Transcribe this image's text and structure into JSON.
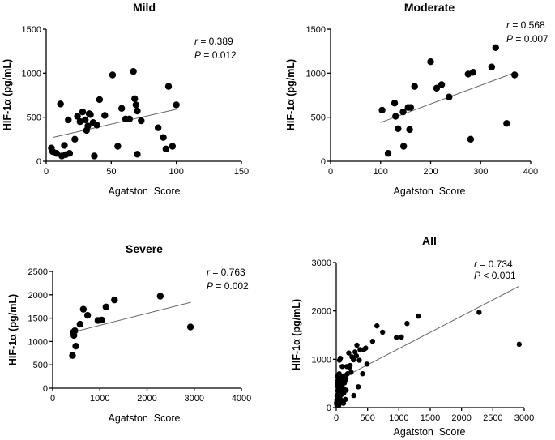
{
  "chart_data": [
    {
      "type": "scatter",
      "title": "Mild",
      "xlabel": "Agatston  Score",
      "ylabel": "HIF-1α (pg/mL)",
      "xlim": [
        0,
        150
      ],
      "ylim": [
        0,
        1500
      ],
      "xticks": [
        0,
        50,
        100,
        150
      ],
      "yticks": [
        0,
        500,
        1000,
        1500
      ],
      "r_label": "r",
      "r_value": " = 0.389",
      "p_label": "P",
      "p_value": " = 0.012",
      "trendline": [
        [
          5,
          270
        ],
        [
          100,
          590
        ]
      ],
      "points": [
        [
          4,
          150
        ],
        [
          5,
          110
        ],
        [
          8,
          90
        ],
        [
          11,
          650
        ],
        [
          12,
          60
        ],
        [
          14,
          180
        ],
        [
          15,
          75
        ],
        [
          17,
          470
        ],
        [
          18,
          90
        ],
        [
          22,
          250
        ],
        [
          24,
          510
        ],
        [
          26,
          450
        ],
        [
          28,
          560
        ],
        [
          30,
          470
        ],
        [
          31,
          350
        ],
        [
          32,
          400
        ],
        [
          33,
          540
        ],
        [
          34,
          530
        ],
        [
          36,
          440
        ],
        [
          37,
          60
        ],
        [
          39,
          410
        ],
        [
          41,
          700
        ],
        [
          45,
          520
        ],
        [
          51,
          980
        ],
        [
          55,
          170
        ],
        [
          58,
          600
        ],
        [
          61,
          480
        ],
        [
          64,
          480
        ],
        [
          67,
          1020
        ],
        [
          68,
          710
        ],
        [
          69,
          640
        ],
        [
          70,
          570
        ],
        [
          70,
          80
        ],
        [
          73,
          460
        ],
        [
          86,
          380
        ],
        [
          90,
          270
        ],
        [
          92,
          140
        ],
        [
          94,
          850
        ],
        [
          97,
          170
        ],
        [
          100,
          640
        ]
      ]
    },
    {
      "type": "scatter",
      "title": "Moderate",
      "xlabel": "Agatston  Score",
      "ylabel": "HIF-1α (pg/mL)",
      "xlim": [
        0,
        400
      ],
      "ylim": [
        0,
        1500
      ],
      "xticks": [
        0,
        100,
        200,
        300,
        400
      ],
      "yticks": [
        0,
        500,
        1000,
        1500
      ],
      "r_label": "r",
      "r_value": " = 0.568",
      "p_label": "P",
      "p_value": " = 0.007",
      "trendline": [
        [
          100,
          440
        ],
        [
          370,
          1010
        ]
      ],
      "points": [
        [
          103,
          580
        ],
        [
          115,
          90
        ],
        [
          128,
          660
        ],
        [
          130,
          510
        ],
        [
          135,
          370
        ],
        [
          145,
          560
        ],
        [
          146,
          170
        ],
        [
          155,
          610
        ],
        [
          158,
          360
        ],
        [
          160,
          610
        ],
        [
          168,
          850
        ],
        [
          200,
          1130
        ],
        [
          212,
          830
        ],
        [
          222,
          870
        ],
        [
          237,
          730
        ],
        [
          275,
          990
        ],
        [
          280,
          250
        ],
        [
          285,
          1010
        ],
        [
          322,
          1070
        ],
        [
          330,
          1290
        ],
        [
          352,
          430
        ],
        [
          368,
          980
        ]
      ]
    },
    {
      "type": "scatter",
      "title": "Severe",
      "xlabel": "Agatston  Score",
      "ylabel": "HIF-1α (pg/mL)",
      "xlim": [
        0,
        4000
      ],
      "ylim": [
        0,
        2500
      ],
      "xticks": [
        0,
        1000,
        2000,
        3000,
        4000
      ],
      "yticks": [
        0,
        500,
        1000,
        1500,
        2000,
        2500
      ],
      "r_label": "r",
      "r_value": " = 0.763",
      "p_label": "P",
      "p_value": " = 0.002",
      "trendline": [
        [
          430,
          1200
        ],
        [
          2930,
          1840
        ]
      ],
      "points": [
        [
          420,
          700
        ],
        [
          440,
          1200
        ],
        [
          450,
          1130
        ],
        [
          470,
          1230
        ],
        [
          490,
          900
        ],
        [
          580,
          1370
        ],
        [
          650,
          1690
        ],
        [
          740,
          1560
        ],
        [
          960,
          1450
        ],
        [
          1040,
          1460
        ],
        [
          1130,
          1740
        ],
        [
          1310,
          1890
        ],
        [
          2280,
          1970
        ],
        [
          2920,
          1310
        ]
      ]
    },
    {
      "type": "scatter",
      "title": "All",
      "xlabel": "Agatston  Score",
      "ylabel": "HIF-1α (pg/mL)",
      "xlim": [
        0,
        3000
      ],
      "ylim": [
        0,
        3000
      ],
      "xticks": [
        0,
        500,
        1000,
        1500,
        2000,
        2500,
        3000
      ],
      "yticks": [
        0,
        1000,
        2000,
        3000
      ],
      "r_label": "r",
      "r_value": " = 0.734",
      "p_label": "P",
      "p_value": " < 0.001",
      "trendline": [
        [
          0,
          550
        ],
        [
          2920,
          2510
        ]
      ],
      "points": [
        [
          5,
          100
        ],
        [
          8,
          60
        ],
        [
          10,
          150
        ],
        [
          12,
          250
        ],
        [
          15,
          450
        ],
        [
          18,
          120
        ],
        [
          20,
          500
        ],
        [
          22,
          650
        ],
        [
          24,
          80
        ],
        [
          26,
          350
        ],
        [
          28,
          560
        ],
        [
          30,
          200
        ],
        [
          32,
          470
        ],
        [
          35,
          300
        ],
        [
          37,
          40
        ],
        [
          40,
          600
        ],
        [
          42,
          180
        ],
        [
          45,
          520
        ],
        [
          48,
          700
        ],
        [
          50,
          380
        ],
        [
          52,
          980
        ],
        [
          55,
          170
        ],
        [
          58,
          420
        ],
        [
          60,
          620
        ],
        [
          63,
          90
        ],
        [
          66,
          1020
        ],
        [
          68,
          480
        ],
        [
          70,
          250
        ],
        [
          72,
          560
        ],
        [
          75,
          330
        ],
        [
          80,
          640
        ],
        [
          85,
          150
        ],
        [
          88,
          460
        ],
        [
          90,
          280
        ],
        [
          95,
          850
        ],
        [
          98,
          550
        ],
        [
          103,
          580
        ],
        [
          110,
          400
        ],
        [
          115,
          90
        ],
        [
          120,
          300
        ],
        [
          128,
          660
        ],
        [
          130,
          510
        ],
        [
          135,
          370
        ],
        [
          145,
          560
        ],
        [
          146,
          170
        ],
        [
          155,
          610
        ],
        [
          158,
          360
        ],
        [
          168,
          850
        ],
        [
          180,
          700
        ],
        [
          200,
          1130
        ],
        [
          212,
          830
        ],
        [
          222,
          870
        ],
        [
          237,
          730
        ],
        [
          250,
          1050
        ],
        [
          275,
          990
        ],
        [
          280,
          250
        ],
        [
          300,
          1150
        ],
        [
          322,
          1070
        ],
        [
          330,
          1290
        ],
        [
          352,
          430
        ],
        [
          368,
          980
        ],
        [
          380,
          1200
        ],
        [
          420,
          700
        ],
        [
          440,
          1200
        ],
        [
          470,
          1230
        ],
        [
          490,
          900
        ],
        [
          580,
          1370
        ],
        [
          650,
          1690
        ],
        [
          740,
          1560
        ],
        [
          960,
          1450
        ],
        [
          1040,
          1460
        ],
        [
          1130,
          1740
        ],
        [
          1310,
          1890
        ],
        [
          2280,
          1970
        ],
        [
          2920,
          1310
        ]
      ]
    }
  ]
}
